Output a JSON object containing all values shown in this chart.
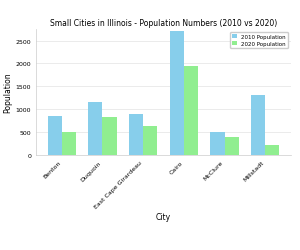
{
  "title": "Small Cities in Illinois - Population Numbers (2010 vs 2020)",
  "xlabel": "City",
  "ylabel": "Population",
  "cities": [
    "Benton",
    "Duquoin",
    "East Cape Girardeau",
    "Cairo",
    "McClure",
    "Millstadt"
  ],
  "pop_2010": [
    850,
    1150,
    900,
    2700,
    500,
    1300
  ],
  "pop_2020": [
    500,
    820,
    620,
    1950,
    380,
    200
  ],
  "color_2010": "#87CEEB",
  "color_2020": "#90EE90",
  "legend_2010": "2010 Population",
  "legend_2020": "2020 Population",
  "ylim": [
    0,
    2750
  ],
  "yticks": [
    0,
    500,
    1000,
    1500,
    2000,
    2500
  ],
  "background_color": "#ffffff",
  "grid_color": "#e8e8e8",
  "bar_width": 0.35,
  "title_fontsize": 5.5,
  "label_fontsize": 5.5,
  "tick_fontsize": 4.5,
  "legend_fontsize": 4.0
}
